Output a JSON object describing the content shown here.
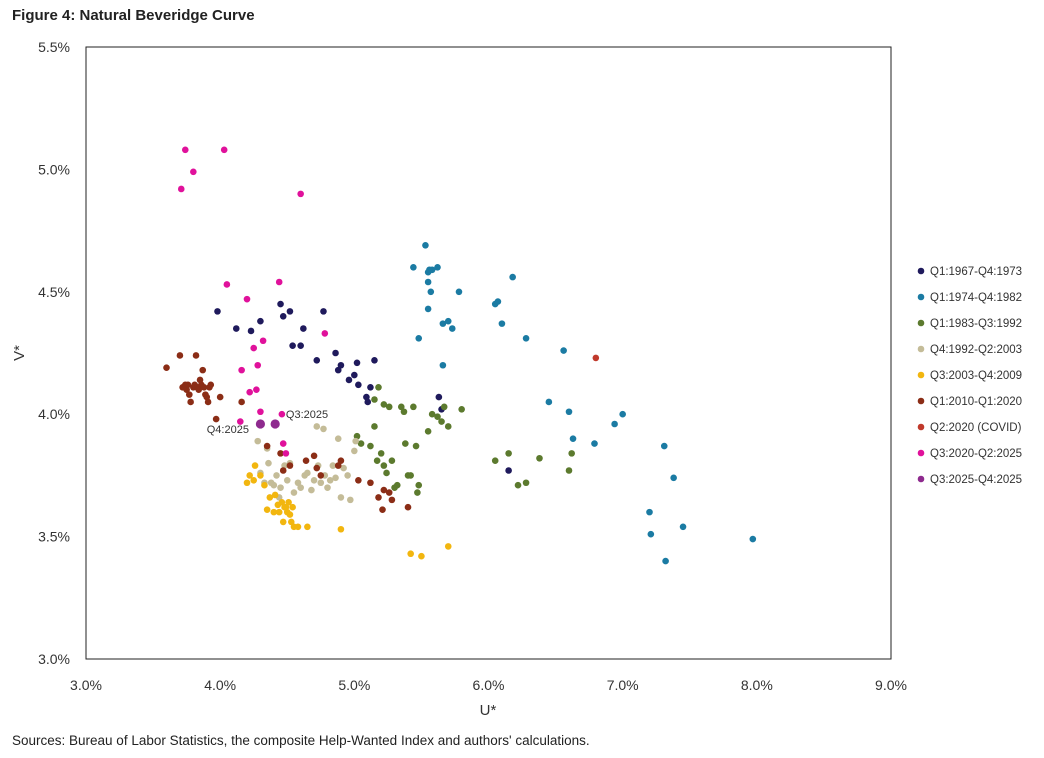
{
  "figure_title": "Figure 4: Natural Beveridge Curve",
  "source_note": "Sources: Bureau of Labor Statistics, the composite Help-Wanted Index and authors' calculations.",
  "chart_data": {
    "type": "scatter",
    "xlabel": "U*",
    "ylabel": "V*",
    "xlim": [
      3.0,
      9.0
    ],
    "ylim": [
      3.0,
      5.5
    ],
    "x_ticks": [
      3.0,
      4.0,
      5.0,
      6.0,
      7.0,
      8.0,
      9.0
    ],
    "y_ticks": [
      3.0,
      3.5,
      4.0,
      4.5,
      5.0,
      5.5
    ],
    "x_tick_labels": [
      "3.0%",
      "4.0%",
      "5.0%",
      "6.0%",
      "7.0%",
      "8.0%",
      "9.0%"
    ],
    "y_tick_labels": [
      "3.0%",
      "3.5%",
      "4.0%",
      "4.5%",
      "5.0%",
      "5.5%"
    ],
    "grid": false,
    "legend_position": "right",
    "annotations": [
      {
        "text": "Q3:2025",
        "x": 4.49,
        "y": 4.0
      },
      {
        "text": "Q4:2025",
        "x": 3.9,
        "y": 3.94
      }
    ],
    "series": [
      {
        "name": "Q1:1967-Q4:1973",
        "color": "#1f1a5c",
        "points": [
          [
            3.98,
            4.42
          ],
          [
            4.12,
            4.35
          ],
          [
            4.23,
            4.34
          ],
          [
            4.3,
            4.38
          ],
          [
            4.45,
            4.45
          ],
          [
            4.47,
            4.4
          ],
          [
            4.52,
            4.42
          ],
          [
            4.54,
            4.28
          ],
          [
            4.6,
            4.28
          ],
          [
            4.62,
            4.35
          ],
          [
            4.72,
            4.22
          ],
          [
            4.77,
            4.42
          ],
          [
            4.86,
            4.25
          ],
          [
            4.88,
            4.18
          ],
          [
            4.9,
            4.2
          ],
          [
            4.96,
            4.14
          ],
          [
            5.0,
            4.16
          ],
          [
            5.02,
            4.21
          ],
          [
            5.03,
            4.12
          ],
          [
            5.09,
            4.07
          ],
          [
            5.1,
            4.05
          ],
          [
            5.12,
            4.11
          ],
          [
            5.15,
            4.22
          ],
          [
            5.63,
            4.07
          ],
          [
            5.65,
            4.02
          ],
          [
            6.15,
            3.77
          ]
        ]
      },
      {
        "name": "Q1:1974-Q4:1982",
        "color": "#1b7ba3",
        "points": [
          [
            5.48,
            4.31
          ],
          [
            5.53,
            4.69
          ],
          [
            5.44,
            4.6
          ],
          [
            5.55,
            4.58
          ],
          [
            5.56,
            4.59
          ],
          [
            5.58,
            4.59
          ],
          [
            5.55,
            4.54
          ],
          [
            5.57,
            4.5
          ],
          [
            5.62,
            4.6
          ],
          [
            5.66,
            4.37
          ],
          [
            5.7,
            4.38
          ],
          [
            5.73,
            4.35
          ],
          [
            5.78,
            4.5
          ],
          [
            5.55,
            4.43
          ],
          [
            5.66,
            4.2
          ],
          [
            6.05,
            4.45
          ],
          [
            6.07,
            4.46
          ],
          [
            6.1,
            4.37
          ],
          [
            6.18,
            4.56
          ],
          [
            6.28,
            4.31
          ],
          [
            6.45,
            4.05
          ],
          [
            6.56,
            4.26
          ],
          [
            6.6,
            4.01
          ],
          [
            6.63,
            3.9
          ],
          [
            6.79,
            3.88
          ],
          [
            6.94,
            3.96
          ],
          [
            7.0,
            4.0
          ],
          [
            7.2,
            3.6
          ],
          [
            7.21,
            3.51
          ],
          [
            7.31,
            3.87
          ],
          [
            7.32,
            3.4
          ],
          [
            7.38,
            3.74
          ],
          [
            7.45,
            3.54
          ],
          [
            7.97,
            3.49
          ]
        ]
      },
      {
        "name": "Q1:1983-Q3:1992",
        "color": "#5c7a2e",
        "points": [
          [
            5.02,
            3.91
          ],
          [
            5.05,
            3.88
          ],
          [
            5.12,
            3.87
          ],
          [
            5.15,
            3.95
          ],
          [
            5.15,
            4.06
          ],
          [
            5.17,
            3.81
          ],
          [
            5.18,
            4.11
          ],
          [
            5.2,
            3.84
          ],
          [
            5.22,
            4.04
          ],
          [
            5.22,
            3.79
          ],
          [
            5.24,
            3.76
          ],
          [
            5.26,
            4.03
          ],
          [
            5.28,
            3.81
          ],
          [
            5.3,
            3.7
          ],
          [
            5.32,
            3.71
          ],
          [
            5.35,
            4.03
          ],
          [
            5.37,
            4.01
          ],
          [
            5.38,
            3.88
          ],
          [
            5.4,
            3.75
          ],
          [
            5.42,
            3.75
          ],
          [
            5.44,
            4.03
          ],
          [
            5.46,
            3.87
          ],
          [
            5.47,
            3.68
          ],
          [
            5.48,
            3.71
          ],
          [
            5.55,
            3.93
          ],
          [
            5.58,
            4.0
          ],
          [
            5.62,
            3.99
          ],
          [
            5.65,
            3.97
          ],
          [
            5.67,
            4.03
          ],
          [
            5.7,
            3.95
          ],
          [
            5.8,
            4.02
          ],
          [
            6.05,
            3.81
          ],
          [
            6.15,
            3.84
          ],
          [
            6.22,
            3.71
          ],
          [
            6.28,
            3.72
          ],
          [
            6.38,
            3.82
          ],
          [
            6.6,
            3.77
          ],
          [
            6.62,
            3.84
          ]
        ]
      },
      {
        "name": "Q4:1992-Q2:2003",
        "color": "#c4bc98",
        "points": [
          [
            4.28,
            3.89
          ],
          [
            4.3,
            3.76
          ],
          [
            4.33,
            3.72
          ],
          [
            4.36,
            3.8
          ],
          [
            4.38,
            3.72
          ],
          [
            4.4,
            3.71
          ],
          [
            4.42,
            3.75
          ],
          [
            4.44,
            3.66
          ],
          [
            4.45,
            3.7
          ],
          [
            4.48,
            3.79
          ],
          [
            4.52,
            3.8
          ],
          [
            4.55,
            3.68
          ],
          [
            4.58,
            3.72
          ],
          [
            4.6,
            3.7
          ],
          [
            4.63,
            3.75
          ],
          [
            4.65,
            3.76
          ],
          [
            4.68,
            3.69
          ],
          [
            4.7,
            3.73
          ],
          [
            4.72,
            3.95
          ],
          [
            4.73,
            3.79
          ],
          [
            4.75,
            3.72
          ],
          [
            4.77,
            3.94
          ],
          [
            4.78,
            3.75
          ],
          [
            4.8,
            3.7
          ],
          [
            4.82,
            3.73
          ],
          [
            4.84,
            3.79
          ],
          [
            4.86,
            3.74
          ],
          [
            4.88,
            3.9
          ],
          [
            4.9,
            3.66
          ],
          [
            4.92,
            3.78
          ],
          [
            4.95,
            3.75
          ],
          [
            4.97,
            3.65
          ],
          [
            5.0,
            3.85
          ],
          [
            5.01,
            3.89
          ],
          [
            4.35,
            3.86
          ],
          [
            4.5,
            3.73
          ]
        ]
      },
      {
        "name": "Q3:2003-Q4:2009",
        "color": "#f2b60f",
        "points": [
          [
            4.2,
            3.72
          ],
          [
            4.22,
            3.75
          ],
          [
            4.25,
            3.73
          ],
          [
            4.26,
            3.79
          ],
          [
            4.3,
            3.75
          ],
          [
            4.33,
            3.71
          ],
          [
            4.35,
            3.61
          ],
          [
            4.37,
            3.66
          ],
          [
            4.4,
            3.6
          ],
          [
            4.41,
            3.67
          ],
          [
            4.43,
            3.63
          ],
          [
            4.44,
            3.6
          ],
          [
            4.46,
            3.64
          ],
          [
            4.47,
            3.56
          ],
          [
            4.48,
            3.62
          ],
          [
            4.49,
            3.62
          ],
          [
            4.5,
            3.6
          ],
          [
            4.51,
            3.64
          ],
          [
            4.52,
            3.59
          ],
          [
            4.53,
            3.56
          ],
          [
            4.54,
            3.62
          ],
          [
            4.55,
            3.54
          ],
          [
            4.58,
            3.54
          ],
          [
            4.65,
            3.54
          ],
          [
            4.9,
            3.53
          ],
          [
            5.42,
            3.43
          ],
          [
            5.5,
            3.42
          ],
          [
            5.7,
            3.46
          ]
        ]
      },
      {
        "name": "Q1:2010-Q1:2020",
        "color": "#8b2d16",
        "points": [
          [
            3.6,
            4.19
          ],
          [
            3.7,
            4.24
          ],
          [
            3.72,
            4.11
          ],
          [
            3.74,
            4.12
          ],
          [
            3.75,
            4.1
          ],
          [
            3.76,
            4.12
          ],
          [
            3.77,
            4.08
          ],
          [
            3.78,
            4.05
          ],
          [
            3.8,
            4.11
          ],
          [
            3.81,
            4.12
          ],
          [
            3.82,
            4.24
          ],
          [
            3.83,
            4.11
          ],
          [
            3.84,
            4.1
          ],
          [
            3.85,
            4.14
          ],
          [
            3.86,
            4.12
          ],
          [
            3.87,
            4.18
          ],
          [
            3.88,
            4.11
          ],
          [
            3.89,
            4.08
          ],
          [
            3.9,
            4.07
          ],
          [
            3.91,
            4.05
          ],
          [
            3.92,
            4.11
          ],
          [
            3.93,
            4.12
          ],
          [
            3.97,
            3.98
          ],
          [
            4.0,
            4.07
          ],
          [
            4.16,
            4.05
          ],
          [
            4.35,
            3.87
          ],
          [
            4.45,
            3.84
          ],
          [
            4.52,
            3.79
          ],
          [
            4.64,
            3.81
          ],
          [
            4.7,
            3.83
          ],
          [
            4.72,
            3.78
          ],
          [
            4.75,
            3.75
          ],
          [
            4.88,
            3.79
          ],
          [
            4.9,
            3.81
          ],
          [
            5.03,
            3.73
          ],
          [
            5.12,
            3.72
          ],
          [
            5.18,
            3.66
          ],
          [
            5.21,
            3.61
          ],
          [
            5.22,
            3.69
          ],
          [
            5.26,
            3.68
          ],
          [
            5.28,
            3.65
          ],
          [
            5.4,
            3.62
          ],
          [
            4.47,
            3.77
          ]
        ]
      },
      {
        "name": "Q2:2020 (COVID)",
        "color": "#c0392b",
        "points": [
          [
            6.8,
            4.23
          ]
        ]
      },
      {
        "name": "Q3:2020-Q2:2025",
        "color": "#e0119b",
        "points": [
          [
            3.71,
            4.92
          ],
          [
            3.74,
            5.08
          ],
          [
            3.8,
            4.99
          ],
          [
            4.03,
            5.08
          ],
          [
            4.05,
            4.53
          ],
          [
            4.16,
            4.18
          ],
          [
            4.2,
            4.47
          ],
          [
            4.22,
            4.09
          ],
          [
            4.25,
            4.27
          ],
          [
            4.27,
            4.1
          ],
          [
            4.28,
            4.2
          ],
          [
            4.3,
            4.01
          ],
          [
            4.32,
            4.3
          ],
          [
            4.44,
            4.54
          ],
          [
            4.46,
            4.0
          ],
          [
            4.47,
            3.88
          ],
          [
            4.49,
            3.84
          ],
          [
            4.6,
            4.9
          ],
          [
            4.78,
            4.33
          ],
          [
            4.15,
            3.97
          ]
        ]
      },
      {
        "name": "Q3:2025-Q4:2025",
        "color": "#8e2a8e",
        "points": [
          [
            4.3,
            3.96
          ],
          [
            4.41,
            3.96
          ]
        ]
      }
    ]
  }
}
